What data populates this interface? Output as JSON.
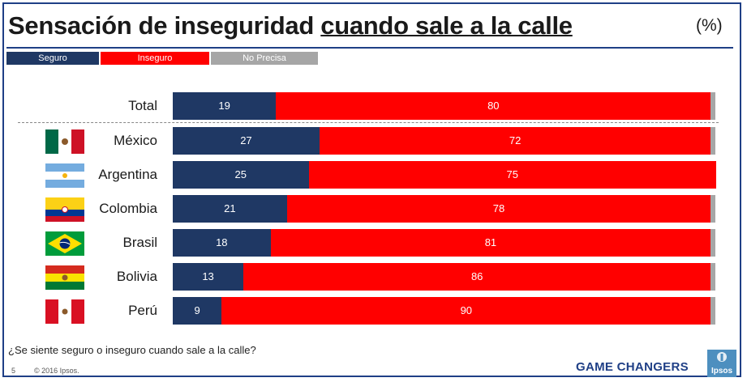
{
  "title_prefix": "Sensación de inseguridad ",
  "title_underlined": "cuando sale a la calle",
  "unit": "(%)",
  "legend": [
    {
      "label": "Seguro",
      "color": "#1f3864"
    },
    {
      "label": "Inseguro",
      "color": "#ff0000"
    },
    {
      "label": "No Precisa",
      "color": "#a6a6a6"
    }
  ],
  "chart_data": {
    "type": "bar",
    "stacked": true,
    "orientation": "horizontal",
    "categories": [
      "Total",
      "México",
      "Argentina",
      "Colombia",
      "Brasil",
      "Bolivia",
      "Perú"
    ],
    "series": [
      {
        "name": "Seguro",
        "values": [
          19,
          27,
          25,
          21,
          18,
          13,
          9
        ]
      },
      {
        "name": "Inseguro",
        "values": [
          80,
          72,
          75,
          78,
          81,
          86,
          90
        ]
      },
      {
        "name": "No Precisa",
        "values": [
          1,
          1,
          0,
          1,
          1,
          1,
          1
        ]
      }
    ],
    "xlim": [
      0,
      100
    ],
    "legend_position": "top-left"
  },
  "question": "¿Se siente seguro o inseguro cuando sale a la calle?",
  "footer": {
    "page": "5",
    "copyright": "© 2016 Ipsos."
  },
  "brand": "GAME CHANGERS",
  "logo_text": "Ipsos"
}
